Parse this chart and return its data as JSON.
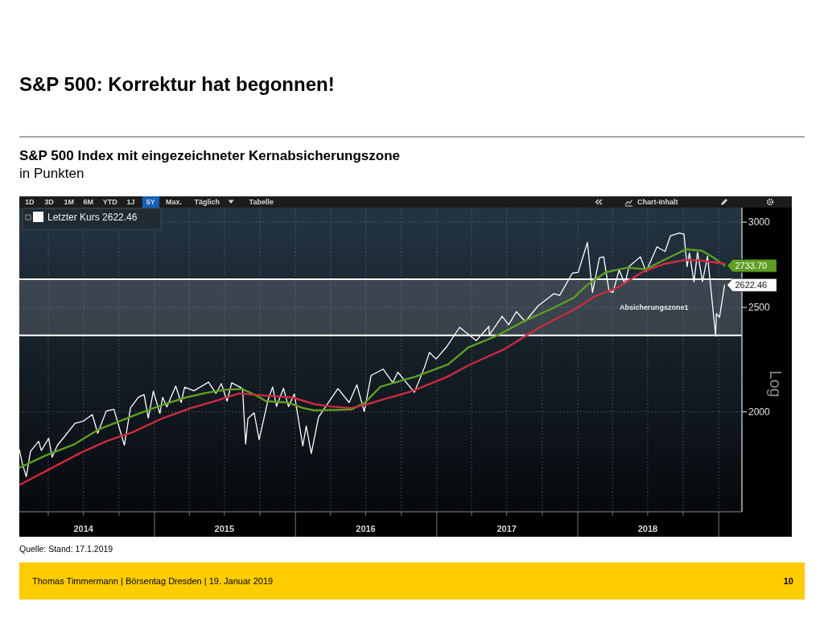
{
  "chart_data": {
    "type": "line",
    "title": "S&P 500: Korrektur hat begonnen!",
    "subtitle": "S&P 500 Index mit eingezeichneter Kernabsicherungszone",
    "ylabel": "Log",
    "annotations": [
      "in Punkten",
      "Quelle: Stand: 17.1.2019",
      "Thomas Timmermann | Börsentag Dresden | 19. Januar 2019",
      "10",
      "1D",
      "3D",
      "1M",
      "6M",
      "YTD",
      "1J",
      "5Y",
      "Max.",
      "Täglich",
      "Tabelle",
      "Chart-Inhalt"
    ],
    "xlim": [
      "2014-01-16",
      "2019-03-02"
    ],
    "ylim": [
      1615,
      3095
    ],
    "log": true,
    "grid": true,
    "legend": "top left",
    "xticks": [
      {
        "value": "2014-04-01",
        "label": null
      },
      {
        "value": "2014-07-01",
        "label": "2014"
      },
      {
        "value": "2014-10-01",
        "label": null
      },
      {
        "value": "2015-01-01",
        "label": null
      },
      {
        "value": "2015-04-01",
        "label": null
      },
      {
        "value": "2015-07-01",
        "label": "2015"
      },
      {
        "value": "2015-10-01",
        "label": null
      },
      {
        "value": "2016-01-01",
        "label": null
      },
      {
        "value": "2016-04-01",
        "label": null
      },
      {
        "value": "2016-07-01",
        "label": "2016"
      },
      {
        "value": "2016-10-01",
        "label": null
      },
      {
        "value": "2017-01-01",
        "label": null
      },
      {
        "value": "2017-04-01",
        "label": null
      },
      {
        "value": "2017-07-01",
        "label": "2017"
      },
      {
        "value": "2017-10-01",
        "label": null
      },
      {
        "value": "2018-01-01",
        "label": null
      },
      {
        "value": "2018-04-01",
        "label": null
      },
      {
        "value": "2018-07-01",
        "label": "2018"
      },
      {
        "value": "2018-10-01",
        "label": null
      },
      {
        "value": "2019-01-01",
        "label": null
      }
    ],
    "yticks": [
      2000,
      2500,
      3000
    ],
    "bands": [
      {
        "axis": "y",
        "from": 2355,
        "to": 2655,
        "label": "Absicherungszone1",
        "color": "#8c9299"
      }
    ],
    "series": [
      {
        "name": "Letzter Kurs 2622.46",
        "color": "#ffffff",
        "x": [
          "2014-01-16",
          "2014-01-24",
          "2014-02-03",
          "2014-02-14",
          "2014-03-07",
          "2014-03-14",
          "2014-04-02",
          "2014-04-11",
          "2014-04-25",
          "2014-05-13",
          "2014-06-09",
          "2014-06-30",
          "2014-07-24",
          "2014-08-07",
          "2014-08-29",
          "2014-09-18",
          "2014-10-15",
          "2014-10-31",
          "2014-11-21",
          "2014-12-05",
          "2014-12-16",
          "2014-12-29",
          "2015-01-15",
          "2015-01-22",
          "2015-02-02",
          "2015-02-25",
          "2015-03-11",
          "2015-03-20",
          "2015-04-13",
          "2015-05-21",
          "2015-06-09",
          "2015-06-23",
          "2015-07-08",
          "2015-07-20",
          "2015-08-17",
          "2015-08-25",
          "2015-08-31",
          "2015-09-16",
          "2015-09-29",
          "2015-10-22",
          "2015-11-03",
          "2015-11-13",
          "2015-12-01",
          "2015-12-14",
          "2015-12-29",
          "2016-01-20",
          "2016-01-29",
          "2016-02-11",
          "2016-03-01",
          "2016-04-20",
          "2016-05-19",
          "2016-06-08",
          "2016-06-27",
          "2016-07-15",
          "2016-08-15",
          "2016-09-09",
          "2016-09-22",
          "2016-11-04",
          "2016-11-30",
          "2016-12-13",
          "2016-12-30",
          "2017-01-26",
          "2017-03-01",
          "2017-04-13",
          "2017-05-16",
          "2017-05-17",
          "2017-06-19",
          "2017-07-06",
          "2017-07-26",
          "2017-08-18",
          "2017-09-20",
          "2017-10-31",
          "2017-11-15",
          "2017-12-18",
          "2018-01-02",
          "2018-01-26",
          "2018-02-08",
          "2018-02-26",
          "2018-03-09",
          "2018-03-23",
          "2018-04-02",
          "2018-04-18",
          "2018-05-03",
          "2018-05-14",
          "2018-06-12",
          "2018-06-27",
          "2018-07-25",
          "2018-08-15",
          "2018-08-29",
          "2018-09-20",
          "2018-10-03",
          "2018-10-11",
          "2018-10-17",
          "2018-10-29",
          "2018-11-07",
          "2018-11-20",
          "2018-12-03",
          "2018-12-10",
          "2018-12-24",
          "2018-12-26",
          "2019-01-03",
          "2019-01-16"
        ],
        "values": [
          1845,
          1790,
          1741,
          1838,
          1878,
          1841,
          1890,
          1815,
          1863,
          1897,
          1951,
          1960,
          1988,
          1910,
          2003,
          2011,
          1862,
          2018,
          2064,
          2075,
          1973,
          2090,
          1993,
          2063,
          2021,
          2113,
          2040,
          2108,
          2092,
          2131,
          2080,
          2124,
          2046,
          2128,
          2102,
          1867,
          1972,
          1996,
          1884,
          2052,
          2109,
          2023,
          2103,
          2022,
          2078,
          1859,
          1940,
          1829,
          1978,
          2102,
          2040,
          2119,
          2001,
          2162,
          2191,
          2128,
          2177,
          2085,
          2199,
          2271,
          2239,
          2297,
          2396,
          2329,
          2401,
          2357,
          2453,
          2409,
          2478,
          2426,
          2508,
          2575,
          2565,
          2690,
          2695,
          2873,
          2581,
          2780,
          2786,
          2588,
          2582,
          2708,
          2630,
          2730,
          2786,
          2699,
          2846,
          2818,
          2914,
          2931,
          2925,
          2728,
          2809,
          2641,
          2814,
          2642,
          2790,
          2637,
          2351,
          2468,
          2448,
          2622.46
        ],
        "value_labels": [
          null,
          null,
          null,
          null,
          null,
          null,
          null,
          null,
          null,
          null,
          null,
          null,
          null,
          null,
          null,
          null,
          null,
          null,
          null,
          null,
          null,
          null,
          null,
          null,
          null,
          null,
          null,
          null,
          null,
          null,
          null,
          null,
          null,
          null,
          null,
          null,
          null,
          null,
          null,
          null,
          null,
          null,
          null,
          null,
          null,
          null,
          null,
          null,
          null,
          null,
          null,
          null,
          null,
          null,
          null,
          null,
          null,
          null,
          null,
          null,
          null,
          null,
          null,
          null,
          null,
          null,
          null,
          null,
          null,
          null,
          null,
          null,
          null,
          null,
          null,
          null,
          null,
          null,
          null,
          null,
          null,
          null,
          null,
          null,
          null,
          null,
          null,
          null,
          null,
          null,
          null,
          null,
          null,
          null,
          null,
          null,
          null,
          null,
          null,
          null,
          null,
          "2622.46"
        ]
      },
      {
        "color": "#5f9e23",
        "x": [
          "2014-01-16",
          "2014-03-26",
          "2014-06-05",
          "2014-08-12",
          "2014-10-08",
          "2014-11-25",
          "2015-01-20",
          "2015-03-23",
          "2015-05-16",
          "2015-07-05",
          "2015-08-16",
          "2015-09-18",
          "2015-10-17",
          "2015-12-11",
          "2016-01-21",
          "2016-02-19",
          "2016-05-25",
          "2016-06-29",
          "2016-08-08",
          "2016-11-08",
          "2017-01-30",
          "2017-03-25",
          "2017-06-04",
          "2017-08-18",
          "2017-10-28",
          "2017-12-21",
          "2018-01-25",
          "2018-03-14",
          "2018-05-09",
          "2018-06-26",
          "2018-08-15",
          "2018-10-08",
          "2018-11-19",
          "2018-12-18",
          "2019-01-16"
        ],
        "values": [
          1774,
          1822,
          1864,
          1928,
          1964,
          1994,
          2029,
          2062,
          2083,
          2097,
          2100,
          2074,
          2046,
          2040,
          2016,
          2006,
          2010,
          2040,
          2110,
          2157,
          2213,
          2297,
          2352,
          2431,
          2496,
          2552,
          2622,
          2695,
          2722,
          2713,
          2770,
          2831,
          2822,
          2782,
          2733.7
        ],
        "value_labels": [
          null,
          null,
          null,
          null,
          null,
          null,
          null,
          null,
          null,
          null,
          null,
          null,
          null,
          null,
          null,
          null,
          null,
          null,
          null,
          null,
          null,
          null,
          null,
          null,
          null,
          null,
          null,
          null,
          null,
          null,
          null,
          null,
          null,
          null,
          "2733.70"
        ]
      },
      {
        "color": "#cc2b42",
        "x": [
          "2014-01-16",
          "2014-03-26",
          "2014-06-26",
          "2014-09-02",
          "2014-11-04",
          "2015-01-20",
          "2015-04-05",
          "2015-06-14",
          "2015-08-08",
          "2015-09-18",
          "2015-11-13",
          "2015-12-25",
          "2016-02-19",
          "2016-04-01",
          "2016-05-25",
          "2016-07-06",
          "2016-08-08",
          "2016-10-30",
          "2017-01-30",
          "2017-03-25",
          "2017-06-25",
          "2017-09-28",
          "2017-12-29",
          "2018-02-15",
          "2018-04-12",
          "2018-06-20",
          "2018-08-15",
          "2018-10-08",
          "2018-11-19",
          "2019-01-16"
        ],
        "values": [
          1710,
          1762,
          1834,
          1880,
          1914,
          1971,
          2016,
          2050,
          2080,
          2074,
          2067,
          2062,
          2033,
          2023,
          2016,
          2033,
          2050,
          2091,
          2157,
          2210,
          2287,
          2400,
          2496,
          2561,
          2607,
          2700,
          2745,
          2768,
          2763,
          2745
        ]
      }
    ]
  }
}
